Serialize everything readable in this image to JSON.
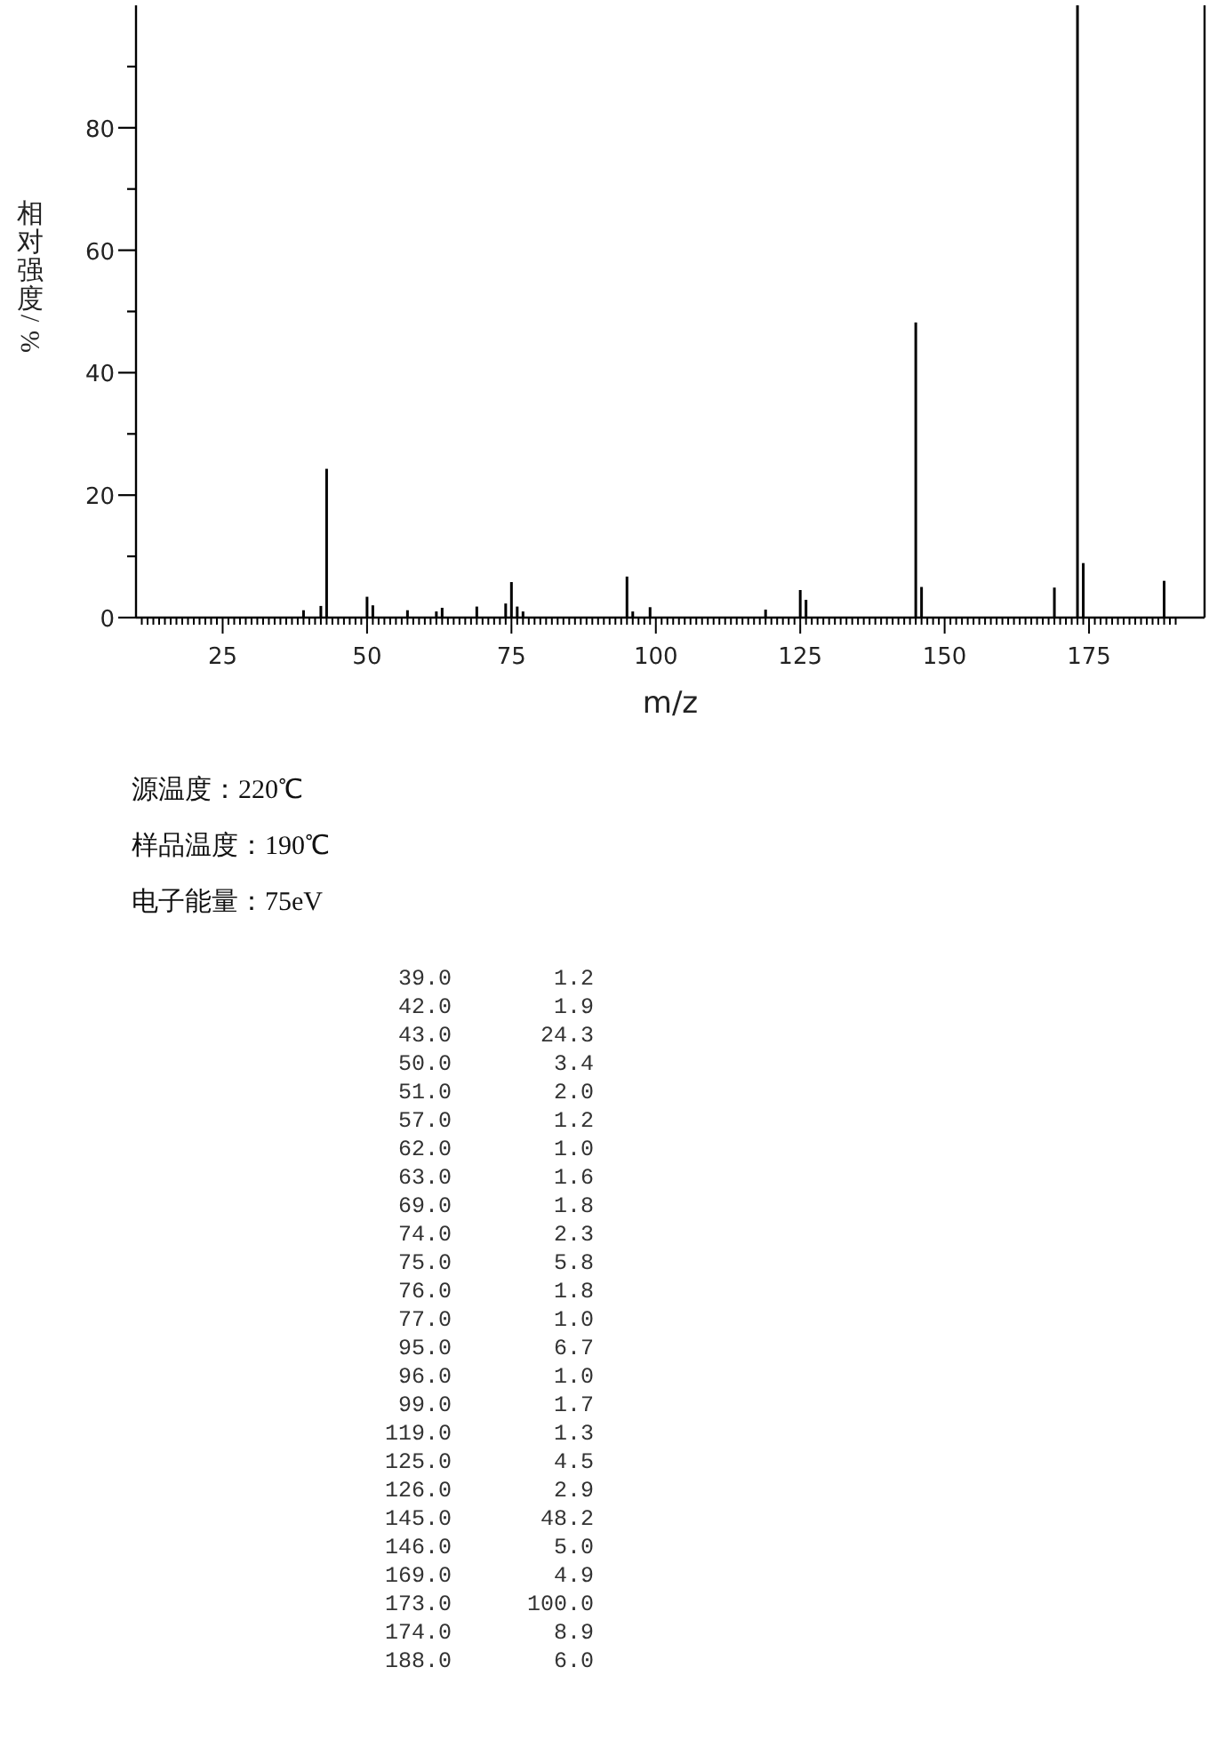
{
  "chart_data": [
    {
      "type": "bar",
      "xlabel": "m/z",
      "ylabel": "相对强度/%",
      "color": "#000000",
      "x": [
        39,
        42,
        43,
        50,
        51,
        57,
        62,
        63,
        69,
        74,
        75,
        76,
        77,
        95,
        96,
        99,
        119,
        125,
        126,
        145,
        146,
        169,
        173,
        174,
        188
      ],
      "values": [
        1.2,
        1.9,
        24.3,
        3.4,
        2.0,
        1.2,
        1.0,
        1.6,
        1.8,
        2.3,
        5.8,
        1.8,
        1.0,
        6.7,
        1.0,
        1.7,
        1.3,
        4.5,
        2.9,
        48.2,
        5.0,
        4.9,
        100.0,
        8.9,
        6.0
      ],
      "xlim": [
        10,
        195
      ],
      "xticks": [
        {
          "value": 11,
          "label": null
        },
        {
          "value": 12,
          "label": null
        },
        {
          "value": 13,
          "label": null
        },
        {
          "value": 14,
          "label": null
        },
        {
          "value": 15,
          "label": null
        },
        {
          "value": 16,
          "label": null
        },
        {
          "value": 17,
          "label": null
        },
        {
          "value": 18,
          "label": null
        },
        {
          "value": 19,
          "label": null
        },
        {
          "value": 20,
          "label": null
        },
        {
          "value": 21,
          "label": null
        },
        {
          "value": 22,
          "label": null
        },
        {
          "value": 23,
          "label": null
        },
        {
          "value": 24,
          "label": null
        },
        25,
        {
          "value": 26,
          "label": null
        },
        {
          "value": 27,
          "label": null
        },
        {
          "value": 28,
          "label": null
        },
        {
          "value": 29,
          "label": null
        },
        {
          "value": 30,
          "label": null
        },
        {
          "value": 31,
          "label": null
        },
        {
          "value": 32,
          "label": null
        },
        {
          "value": 33,
          "label": null
        },
        {
          "value": 34,
          "label": null
        },
        {
          "value": 35,
          "label": null
        },
        {
          "value": 36,
          "label": null
        },
        {
          "value": 37,
          "label": null
        },
        {
          "value": 38,
          "label": null
        },
        {
          "value": 39,
          "label": null
        },
        {
          "value": 40,
          "label": null
        },
        {
          "value": 41,
          "label": null
        },
        {
          "value": 42,
          "label": null
        },
        {
          "value": 43,
          "label": null
        },
        {
          "value": 44,
          "label": null
        },
        {
          "value": 45,
          "label": null
        },
        {
          "value": 46,
          "label": null
        },
        {
          "value": 47,
          "label": null
        },
        {
          "value": 48,
          "label": null
        },
        {
          "value": 49,
          "label": null
        },
        50,
        {
          "value": 51,
          "label": null
        },
        {
          "value": 52,
          "label": null
        },
        {
          "value": 53,
          "label": null
        },
        {
          "value": 54,
          "label": null
        },
        {
          "value": 55,
          "label": null
        },
        {
          "value": 56,
          "label": null
        },
        {
          "value": 57,
          "label": null
        },
        {
          "value": 58,
          "label": null
        },
        {
          "value": 59,
          "label": null
        },
        {
          "value": 60,
          "label": null
        },
        {
          "value": 61,
          "label": null
        },
        {
          "value": 62,
          "label": null
        },
        {
          "value": 63,
          "label": null
        },
        {
          "value": 64,
          "label": null
        },
        {
          "value": 65,
          "label": null
        },
        {
          "value": 66,
          "label": null
        },
        {
          "value": 67,
          "label": null
        },
        {
          "value": 68,
          "label": null
        },
        {
          "value": 69,
          "label": null
        },
        {
          "value": 70,
          "label": null
        },
        {
          "value": 71,
          "label": null
        },
        {
          "value": 72,
          "label": null
        },
        {
          "value": 73,
          "label": null
        },
        {
          "value": 74,
          "label": null
        },
        75,
        {
          "value": 76,
          "label": null
        },
        {
          "value": 77,
          "label": null
        },
        {
          "value": 78,
          "label": null
        },
        {
          "value": 79,
          "label": null
        },
        {
          "value": 80,
          "label": null
        },
        {
          "value": 81,
          "label": null
        },
        {
          "value": 82,
          "label": null
        },
        {
          "value": 83,
          "label": null
        },
        {
          "value": 84,
          "label": null
        },
        {
          "value": 85,
          "label": null
        },
        {
          "value": 86,
          "label": null
        },
        {
          "value": 87,
          "label": null
        },
        {
          "value": 88,
          "label": null
        },
        {
          "value": 89,
          "label": null
        },
        {
          "value": 90,
          "label": null
        },
        {
          "value": 91,
          "label": null
        },
        {
          "value": 92,
          "label": null
        },
        {
          "value": 93,
          "label": null
        },
        {
          "value": 94,
          "label": null
        },
        {
          "value": 95,
          "label": null
        },
        {
          "value": 96,
          "label": null
        },
        {
          "value": 97,
          "label": null
        },
        {
          "value": 98,
          "label": null
        },
        {
          "value": 99,
          "label": null
        },
        100,
        {
          "value": 101,
          "label": null
        },
        {
          "value": 102,
          "label": null
        },
        {
          "value": 103,
          "label": null
        },
        {
          "value": 104,
          "label": null
        },
        {
          "value": 105,
          "label": null
        },
        {
          "value": 106,
          "label": null
        },
        {
          "value": 107,
          "label": null
        },
        {
          "value": 108,
          "label": null
        },
        {
          "value": 109,
          "label": null
        },
        {
          "value": 110,
          "label": null
        },
        {
          "value": 111,
          "label": null
        },
        {
          "value": 112,
          "label": null
        },
        {
          "value": 113,
          "label": null
        },
        {
          "value": 114,
          "label": null
        },
        {
          "value": 115,
          "label": null
        },
        {
          "value": 116,
          "label": null
        },
        {
          "value": 117,
          "label": null
        },
        {
          "value": 118,
          "label": null
        },
        {
          "value": 119,
          "label": null
        },
        {
          "value": 120,
          "label": null
        },
        {
          "value": 121,
          "label": null
        },
        {
          "value": 122,
          "label": null
        },
        {
          "value": 123,
          "label": null
        },
        {
          "value": 124,
          "label": null
        },
        125,
        {
          "value": 126,
          "label": null
        },
        {
          "value": 127,
          "label": null
        },
        {
          "value": 128,
          "label": null
        },
        {
          "value": 129,
          "label": null
        },
        {
          "value": 130,
          "label": null
        },
        {
          "value": 131,
          "label": null
        },
        {
          "value": 132,
          "label": null
        },
        {
          "value": 133,
          "label": null
        },
        {
          "value": 134,
          "label": null
        },
        {
          "value": 135,
          "label": null
        },
        {
          "value": 136,
          "label": null
        },
        {
          "value": 137,
          "label": null
        },
        {
          "value": 138,
          "label": null
        },
        {
          "value": 139,
          "label": null
        },
        {
          "value": 140,
          "label": null
        },
        {
          "value": 141,
          "label": null
        },
        {
          "value": 142,
          "label": null
        },
        {
          "value": 143,
          "label": null
        },
        {
          "value": 144,
          "label": null
        },
        {
          "value": 145,
          "label": null
        },
        {
          "value": 146,
          "label": null
        },
        {
          "value": 147,
          "label": null
        },
        {
          "value": 148,
          "label": null
        },
        {
          "value": 149,
          "label": null
        },
        150,
        {
          "value": 151,
          "label": null
        },
        {
          "value": 152,
          "label": null
        },
        {
          "value": 153,
          "label": null
        },
        {
          "value": 154,
          "label": null
        },
        {
          "value": 155,
          "label": null
        },
        {
          "value": 156,
          "label": null
        },
        {
          "value": 157,
          "label": null
        },
        {
          "value": 158,
          "label": null
        },
        {
          "value": 159,
          "label": null
        },
        {
          "value": 160,
          "label": null
        },
        {
          "value": 161,
          "label": null
        },
        {
          "value": 162,
          "label": null
        },
        {
          "value": 163,
          "label": null
        },
        {
          "value": 164,
          "label": null
        },
        {
          "value": 165,
          "label": null
        },
        {
          "value": 166,
          "label": null
        },
        {
          "value": 167,
          "label": null
        },
        {
          "value": 168,
          "label": null
        },
        {
          "value": 169,
          "label": null
        },
        {
          "value": 170,
          "label": null
        },
        {
          "value": 171,
          "label": null
        },
        {
          "value": 172,
          "label": null
        },
        {
          "value": 173,
          "label": null
        },
        {
          "value": 174,
          "label": null
        },
        175,
        {
          "value": 176,
          "label": null
        },
        {
          "value": 177,
          "label": null
        },
        {
          "value": 178,
          "label": null
        },
        {
          "value": 179,
          "label": null
        },
        {
          "value": 180,
          "label": null
        },
        {
          "value": 181,
          "label": null
        },
        {
          "value": 182,
          "label": null
        },
        {
          "value": 183,
          "label": null
        },
        {
          "value": 184,
          "label": null
        },
        {
          "value": 185,
          "label": null
        },
        {
          "value": 186,
          "label": null
        },
        {
          "value": 187,
          "label": null
        },
        {
          "value": 188,
          "label": null
        },
        {
          "value": 189,
          "label": null
        },
        {
          "value": 190,
          "label": null
        }
      ],
      "ylim": [
        0,
        100
      ],
      "yticks": [
        0,
        {
          "value": 10,
          "label": null
        },
        20,
        {
          "value": 30,
          "label": null
        },
        40,
        {
          "value": 50,
          "label": null
        },
        60,
        {
          "value": 70,
          "label": null
        },
        80,
        {
          "value": 90,
          "label": null
        }
      ],
      "annotations": [
        "源温度：220℃",
        "样品温度：190℃",
        "电子能量：75eV"
      ]
    },
    {
      "type": "other",
      "annotations": [
        "39.0 1.2",
        "42.0 1.9",
        "43.0 24.3",
        "50.0 3.4",
        "51.0 2.0",
        "57.0 1.2",
        "62.0 1.0",
        "63.0 1.6",
        "69.0 1.8",
        "74.0 2.3",
        "75.0 5.8",
        "76.0 1.8",
        "77.0 1.0",
        "95.0 6.7",
        "96.0 1.0",
        "99.0 1.7",
        "119.0 1.3",
        "125.0 4.5",
        "126.0 2.9",
        "145.0 48.2",
        "146.0 5.0",
        "169.0 4.9",
        "173.0 100.0",
        "174.0 8.9",
        "188.0 6.0"
      ]
    }
  ]
}
